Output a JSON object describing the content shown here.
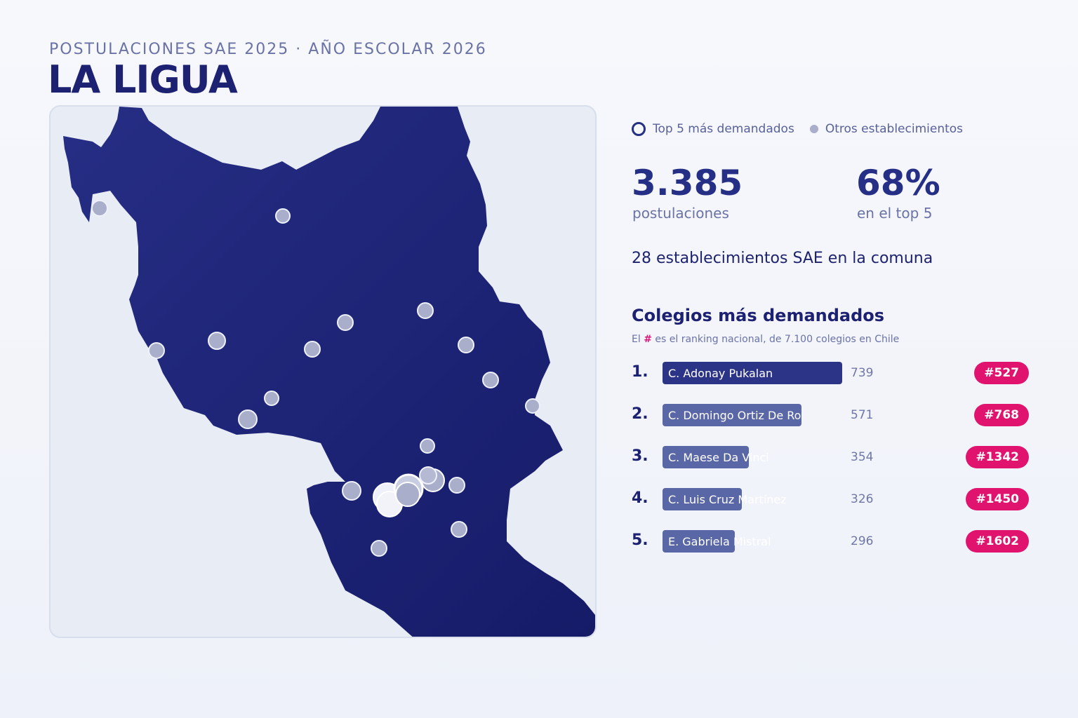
{
  "header": {
    "kicker": "POSTULACIONES SAE 2025 · AÑO ESCOLAR 2026",
    "title": "LA LIGUA"
  },
  "legend": {
    "top5": "Top 5 más demandados",
    "others": "Otros establecimientos"
  },
  "stats": {
    "applications_value": "3.385",
    "applications_label": "postulaciones",
    "top5_share_value": "68%",
    "top5_share_label": "en el top 5",
    "schools_line": "28 establecimientos SAE en la comuna"
  },
  "ranking": {
    "title": "Colegios más demandados",
    "subtitle_prefix": "El",
    "subtitle_hash": "#",
    "subtitle_suffix": "es el ranking nacional, de 7.100 colegios en Chile",
    "max_applications": 739,
    "items": [
      {
        "position": "1.",
        "name": "C. Adonay Pukalan",
        "applications": 739,
        "national_rank": "#527"
      },
      {
        "position": "2.",
        "name": "C. Domingo Ortiz De Ro",
        "applications": 571,
        "national_rank": "#768"
      },
      {
        "position": "3.",
        "name": "C. Maese Da Vinci",
        "applications": 354,
        "national_rank": "#1342"
      },
      {
        "position": "4.",
        "name": "C. Luis Cruz Martínez",
        "applications": 326,
        "national_rank": "#1450"
      },
      {
        "position": "5.",
        "name": "E. Gabriela Mistral",
        "applications": 296,
        "national_rank": "#1602"
      }
    ]
  },
  "colors": {
    "commune_fill": "#1f2577",
    "top_bar": "#2b3487",
    "other_bar": "#5a67a6",
    "rank_pill": "#e0146e",
    "dot_fill": "#a9aeca"
  }
}
